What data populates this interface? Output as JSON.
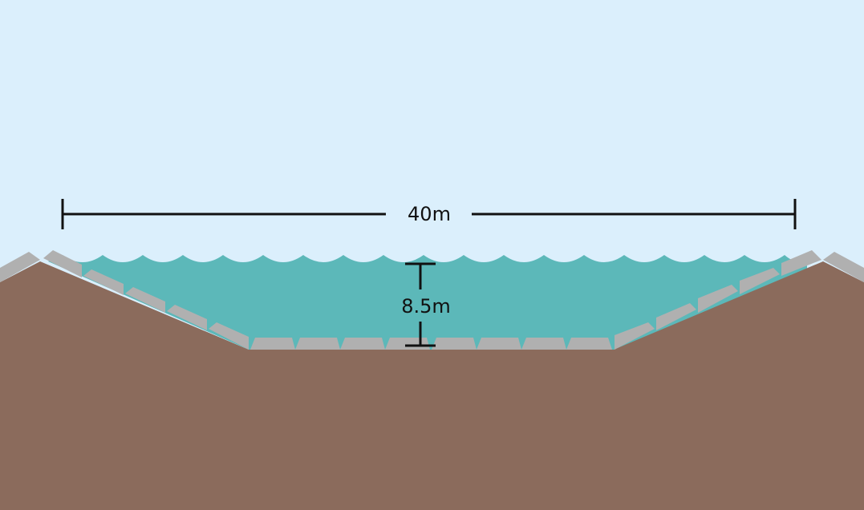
{
  "diagram": {
    "width_label": "40m",
    "depth_label": "8.5m",
    "colors": {
      "sky": "#dbeffc",
      "water": "#5cb8b9",
      "earth": "#8b6b5c",
      "blocks": "#b0b0b0",
      "lines": "#111111"
    }
  }
}
